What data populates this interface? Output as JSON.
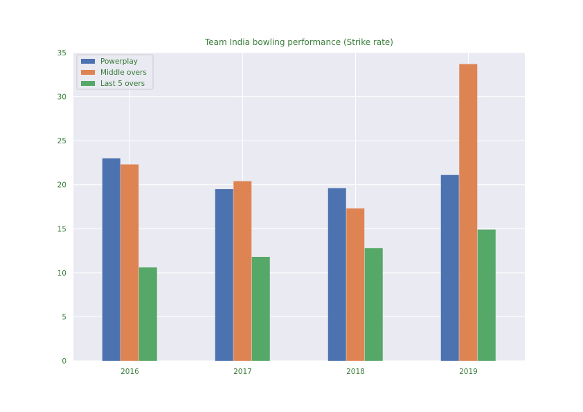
{
  "chart_data": {
    "type": "bar",
    "title": "Team India bowling performance (Strike rate)",
    "xlabel": "",
    "ylabel": "",
    "categories": [
      "2016",
      "2017",
      "2018",
      "2019"
    ],
    "series": [
      {
        "name": "Powerplay",
        "color": "#4c72b0",
        "values": [
          23.0,
          19.5,
          19.6,
          21.1
        ]
      },
      {
        "name": "Middle overs",
        "color": "#dd8452",
        "values": [
          22.3,
          20.4,
          17.3,
          33.7
        ]
      },
      {
        "name": "Last 5 overs",
        "color": "#55a868",
        "values": [
          10.6,
          11.8,
          12.8,
          14.9
        ]
      }
    ],
    "ylim": [
      0,
      35
    ],
    "yticks": [
      0,
      5,
      10,
      15,
      20,
      25,
      30,
      35
    ],
    "grid": true,
    "legend_position": "top-left",
    "colors": {
      "plot_background": "#eaeaf2",
      "grid": "#ffffff",
      "text": "#3a7d3a"
    }
  }
}
